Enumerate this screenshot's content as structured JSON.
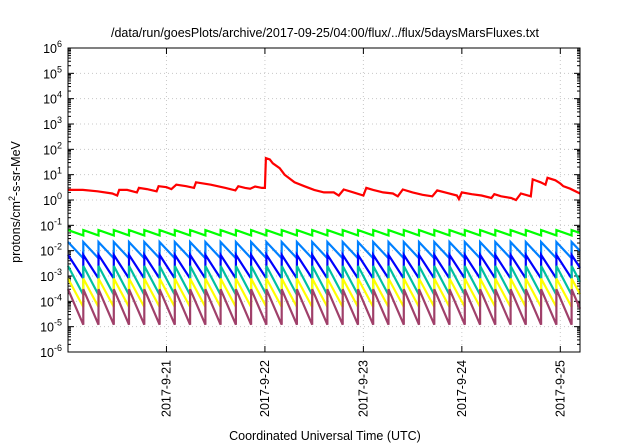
{
  "chart_data": {
    "type": "line",
    "title": "/data/run/goesPlots/archive/2017-09-25/04:00/flux/../flux/5daysMarsFluxes.txt",
    "xlabel": "Coordinated Universal Time (UTC)",
    "ylabel_main": "protons/cm",
    "ylabel_sup": "2",
    "ylabel_tail": "-s-sr-MeV",
    "x_ticks": [
      "2017-9-21",
      "2017-9-22",
      "2017-9-23",
      "2017-9-24",
      "2017-9-25"
    ],
    "x_tick_days": [
      1,
      2,
      3,
      4,
      5
    ],
    "x_range_days": [
      0,
      5.2
    ],
    "y_scale": "log",
    "y_range": [
      1e-06,
      1000000.0
    ],
    "y_ticks": [
      {
        "base": "10",
        "exp": "-6",
        "value": -6
      },
      {
        "base": "10",
        "exp": "-5",
        "value": -5
      },
      {
        "base": "10",
        "exp": "-4",
        "value": -4
      },
      {
        "base": "10",
        "exp": "-3",
        "value": -3
      },
      {
        "base": "10",
        "exp": "-2",
        "value": -2
      },
      {
        "base": "10",
        "exp": "-1",
        "value": -1
      },
      {
        "base": "10",
        "exp": "0",
        "value": 0
      },
      {
        "base": "10",
        "exp": "1",
        "value": 1
      },
      {
        "base": "10",
        "exp": "2",
        "value": 2
      },
      {
        "base": "10",
        "exp": "3",
        "value": 3
      },
      {
        "base": "10",
        "exp": "4",
        "value": 4
      },
      {
        "base": "10",
        "exp": "5",
        "value": 5
      },
      {
        "base": "10",
        "exp": "6",
        "value": 6
      }
    ],
    "grid": true,
    "x_note": "x values are days after 2017-09-20 00:00 UTC",
    "series": [
      {
        "color": "#ff0000",
        "points": [
          [
            0.0,
            2.5
          ],
          [
            0.15,
            2.5
          ],
          [
            0.3,
            2.2
          ],
          [
            0.45,
            1.8
          ],
          [
            0.5,
            1.5
          ],
          [
            0.52,
            2.5
          ],
          [
            0.6,
            2.5
          ],
          [
            0.7,
            2.0
          ],
          [
            0.72,
            3.0
          ],
          [
            0.8,
            2.7
          ],
          [
            0.9,
            2.2
          ],
          [
            0.92,
            3.5
          ],
          [
            1.0,
            3.2
          ],
          [
            1.05,
            2.7
          ],
          [
            1.1,
            4.0
          ],
          [
            1.2,
            3.5
          ],
          [
            1.28,
            3.0
          ],
          [
            1.3,
            5.0
          ],
          [
            1.45,
            4.0
          ],
          [
            1.6,
            3.0
          ],
          [
            1.7,
            2.4
          ],
          [
            1.73,
            3.5
          ],
          [
            1.8,
            3.0
          ],
          [
            1.85,
            2.8
          ],
          [
            1.9,
            3.4
          ],
          [
            1.97,
            3.0
          ],
          [
            2.0,
            3.0
          ],
          [
            2.01,
            45
          ],
          [
            2.05,
            40
          ],
          [
            2.08,
            28
          ],
          [
            2.15,
            18
          ],
          [
            2.2,
            10
          ],
          [
            2.3,
            5
          ],
          [
            2.4,
            3.5
          ],
          [
            2.5,
            2.5
          ],
          [
            2.6,
            2.0
          ],
          [
            2.7,
            2.0
          ],
          [
            2.75,
            1.5
          ],
          [
            2.8,
            2.6
          ],
          [
            2.9,
            2.0
          ],
          [
            3.0,
            1.5
          ],
          [
            3.03,
            3.0
          ],
          [
            3.1,
            2.5
          ],
          [
            3.2,
            2.0
          ],
          [
            3.3,
            1.8
          ],
          [
            3.35,
            1.4
          ],
          [
            3.4,
            2.6
          ],
          [
            3.5,
            2.0
          ],
          [
            3.6,
            1.6
          ],
          [
            3.7,
            1.4
          ],
          [
            3.75,
            2.4
          ],
          [
            3.85,
            1.9
          ],
          [
            3.95,
            1.5
          ],
          [
            3.97,
            1.1
          ],
          [
            4.0,
            2.0
          ],
          [
            4.1,
            1.7
          ],
          [
            4.2,
            1.5
          ],
          [
            4.3,
            1.2
          ],
          [
            4.33,
            1.7
          ],
          [
            4.4,
            1.4
          ],
          [
            4.5,
            1.2
          ],
          [
            4.55,
            1.0
          ],
          [
            4.6,
            1.8
          ],
          [
            4.7,
            1.4
          ],
          [
            4.72,
            6.5
          ],
          [
            4.8,
            5.0
          ],
          [
            4.85,
            4.0
          ],
          [
            4.87,
            7.5
          ],
          [
            4.95,
            6.0
          ],
          [
            5.0,
            4.5
          ],
          [
            5.03,
            3.5
          ],
          [
            5.1,
            2.8
          ],
          [
            5.2,
            1.8
          ]
        ]
      },
      {
        "color": "#00ff00",
        "sawtooth": {
          "period": 0.155,
          "start": 0.0,
          "end": 5.2,
          "high": 0.065,
          "low": 0.04
        }
      },
      {
        "color": "#0080ff",
        "sawtooth": {
          "period": 0.155,
          "start": 0.0,
          "end": 5.2,
          "high": 0.022,
          "low": 0.005
        }
      },
      {
        "color": "#0000ff",
        "sawtooth": {
          "period": 0.155,
          "start": 0.0,
          "end": 5.2,
          "high": 0.0068,
          "low": 0.0008
        }
      },
      {
        "color": "#00c0a0",
        "sawtooth": {
          "period": 0.155,
          "start": 0.0,
          "end": 5.2,
          "high": 0.0025,
          "low": 0.00018
        }
      },
      {
        "color": "#ffff00",
        "sawtooth": {
          "period": 0.155,
          "start": 0.0,
          "end": 5.2,
          "high": 0.0008,
          "low": 6e-05
        }
      },
      {
        "color": "#a0406a",
        "sawtooth": {
          "period": 0.155,
          "start": 0.0,
          "end": 5.2,
          "high": 0.0003,
          "low": 1.2e-05
        }
      }
    ]
  }
}
